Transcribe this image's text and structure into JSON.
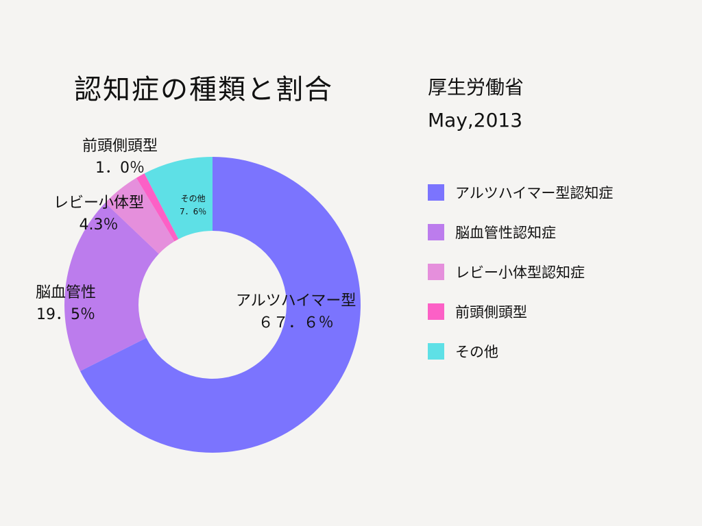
{
  "chart_data": {
    "type": "pie",
    "title": "認知症の種類と割合",
    "source": [
      "厚生労働省",
      "May,2013"
    ],
    "categories": [
      "アルツハイマー型認知症",
      "脳血管性認知症",
      "レビー小体型認知症",
      "前頭側頭型",
      "その他"
    ],
    "values": [
      67.6,
      19.5,
      4.3,
      1.0,
      7.6
    ],
    "colors": [
      "#7b74fe",
      "#bc7ced",
      "#e58fdc",
      "#fc60c6",
      "#5ee0e6"
    ],
    "slice_labels": [
      {
        "name": "アルツハイマー型",
        "value": "６７．６％"
      },
      {
        "name": "脳血管性",
        "value": "19．5％"
      },
      {
        "name": "レビー小体型",
        "value": "4.3％"
      },
      {
        "name": "前頭側頭型",
        "value": "1．0％"
      },
      {
        "name": "その他",
        "value": "7．6％"
      }
    ],
    "donut": true,
    "legend_position": "right"
  }
}
